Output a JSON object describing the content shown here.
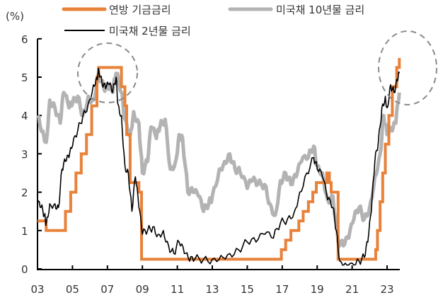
{
  "chart_data": {
    "type": "line",
    "title": "",
    "ylabel": "(%)",
    "xlabel": "",
    "ylim": [
      0,
      6
    ],
    "xlim": [
      2003,
      2023.7
    ],
    "y_ticks": [
      "0",
      "1",
      "2",
      "3",
      "4",
      "5",
      "6"
    ],
    "x_ticks": [
      "03",
      "05",
      "07",
      "09",
      "11",
      "13",
      "15",
      "17",
      "19",
      "21",
      "23"
    ],
    "grid": false,
    "legend_position": "top",
    "legend": [
      "연방 기금금리",
      "미국채 10년물 금리",
      "미국채 2년물 금리"
    ],
    "annotations": [
      {
        "type": "dashed-circle",
        "around": "2006-2007 peak"
      },
      {
        "type": "dashed-circle",
        "around": "2023 peak"
      }
    ],
    "series": [
      {
        "name": "연방 기금금리",
        "color": "#e8823a",
        "x": [
          2003.0,
          2003.5,
          2004.5,
          2004.6,
          2004.9,
          2005.2,
          2005.5,
          2005.8,
          2006.1,
          2006.4,
          2006.5,
          2007.7,
          2007.8,
          2008.0,
          2008.1,
          2008.3,
          2008.8,
          2008.95,
          2015.95,
          2016.95,
          2017.2,
          2017.5,
          2017.95,
          2018.2,
          2018.5,
          2018.75,
          2018.95,
          2019.55,
          2019.7,
          2019.8,
          2020.2,
          2022.2,
          2022.35,
          2022.45,
          2022.6,
          2022.75,
          2022.9,
          2023.1,
          2023.3,
          2023.55,
          2023.7
        ],
        "values": [
          1.25,
          1.0,
          1.0,
          1.5,
          2.0,
          2.5,
          3.0,
          3.5,
          4.25,
          5.0,
          5.25,
          5.25,
          4.75,
          4.25,
          3.5,
          2.25,
          2.0,
          0.25,
          0.25,
          0.5,
          0.75,
          1.0,
          1.25,
          1.5,
          1.75,
          2.0,
          2.25,
          2.5,
          2.25,
          2.0,
          0.25,
          0.25,
          0.5,
          1.0,
          1.75,
          2.5,
          3.25,
          4.0,
          4.75,
          5.25,
          5.5
        ]
      },
      {
        "name": "미국채 10년물 금리",
        "color": "#b3b3b3",
        "x": [
          2003.0,
          2003.3,
          2003.5,
          2003.7,
          2004.0,
          2004.3,
          2004.5,
          2004.8,
          2005.0,
          2005.3,
          2005.6,
          2005.9,
          2006.2,
          2006.5,
          2006.8,
          2007.0,
          2007.3,
          2007.5,
          2007.8,
          2008.0,
          2008.3,
          2008.5,
          2008.8,
          2009.0,
          2009.3,
          2009.5,
          2009.8,
          2010.0,
          2010.3,
          2010.6,
          2010.9,
          2011.1,
          2011.3,
          2011.6,
          2011.9,
          2012.2,
          2012.5,
          2012.8,
          2013.0,
          2013.4,
          2013.7,
          2014.0,
          2014.3,
          2014.6,
          2015.0,
          2015.3,
          2015.6,
          2016.0,
          2016.3,
          2016.6,
          2016.9,
          2017.2,
          2017.5,
          2017.8,
          2018.1,
          2018.5,
          2018.8,
          2019.0,
          2019.3,
          2019.6,
          2019.9,
          2020.2,
          2020.5,
          2020.8,
          2021.1,
          2021.4,
          2021.7,
          2022.0,
          2022.3,
          2022.6,
          2022.8,
          2023.0,
          2023.3,
          2023.5,
          2023.7
        ],
        "values": [
          4.0,
          3.6,
          3.3,
          4.4,
          4.2,
          3.8,
          4.6,
          4.2,
          4.3,
          4.5,
          4.0,
          4.5,
          4.4,
          5.1,
          4.7,
          4.7,
          4.6,
          5.1,
          4.6,
          3.9,
          3.5,
          4.1,
          3.8,
          2.5,
          2.8,
          3.7,
          3.4,
          3.7,
          3.9,
          2.6,
          2.8,
          3.5,
          3.4,
          2.0,
          2.0,
          1.9,
          1.5,
          1.7,
          1.9,
          2.6,
          2.8,
          3.0,
          2.6,
          2.5,
          2.1,
          2.3,
          2.2,
          2.2,
          1.7,
          1.4,
          2.3,
          2.5,
          2.2,
          2.4,
          2.8,
          2.9,
          3.2,
          2.7,
          2.5,
          1.8,
          1.9,
          0.7,
          0.6,
          0.8,
          1.3,
          1.6,
          1.3,
          1.6,
          2.4,
          3.0,
          4.0,
          3.5,
          3.6,
          3.8,
          4.6
        ]
      },
      {
        "name": "미국채 2년물 금리",
        "color": "#000000",
        "x": [
          2003.0,
          2003.2,
          2003.4,
          2003.5,
          2003.7,
          2004.0,
          2004.2,
          2004.4,
          2004.6,
          2004.8,
          2005.0,
          2005.3,
          2005.6,
          2005.9,
          2006.2,
          2006.4,
          2006.5,
          2006.7,
          2006.9,
          2007.1,
          2007.3,
          2007.5,
          2007.6,
          2007.8,
          2008.0,
          2008.2,
          2008.4,
          2008.6,
          2008.8,
          2009.0,
          2009.3,
          2009.6,
          2009.9,
          2010.2,
          2010.5,
          2010.8,
          2011.1,
          2011.4,
          2011.7,
          2012.0,
          2012.5,
          2013.0,
          2013.5,
          2014.0,
          2014.5,
          2015.0,
          2015.5,
          2016.0,
          2016.5,
          2016.9,
          2017.3,
          2017.7,
          2018.0,
          2018.4,
          2018.8,
          2019.0,
          2019.3,
          2019.6,
          2019.9,
          2020.1,
          2020.3,
          2020.6,
          2021.0,
          2021.4,
          2021.7,
          2021.9,
          2022.1,
          2022.3,
          2022.5,
          2022.7,
          2022.9,
          2023.0,
          2023.2,
          2023.4,
          2023.6,
          2023.7
        ],
        "values": [
          1.7,
          1.6,
          1.4,
          1.2,
          1.7,
          1.7,
          1.6,
          2.6,
          2.8,
          2.9,
          3.2,
          3.6,
          4.0,
          4.3,
          4.8,
          5.0,
          5.2,
          4.8,
          4.7,
          4.8,
          4.6,
          5.0,
          4.3,
          4.0,
          2.7,
          2.5,
          1.5,
          2.4,
          1.6,
          0.9,
          1.0,
          1.1,
          0.9,
          1.0,
          0.6,
          0.4,
          0.7,
          0.4,
          0.2,
          0.25,
          0.25,
          0.25,
          0.35,
          0.4,
          0.5,
          0.7,
          0.7,
          0.9,
          0.8,
          1.2,
          1.3,
          1.5,
          2.0,
          2.5,
          2.9,
          2.6,
          2.4,
          1.8,
          1.6,
          1.0,
          0.2,
          0.15,
          0.15,
          0.2,
          0.3,
          0.7,
          1.5,
          2.8,
          3.3,
          4.2,
          4.5,
          4.2,
          4.8,
          4.6,
          4.9,
          5.1
        ]
      }
    ]
  },
  "legend": {
    "items": [
      {
        "label": "연방 기금금리",
        "color": "#e8823a"
      },
      {
        "label": "미국채 10년물 금리",
        "color": "#b3b3b3"
      },
      {
        "label": "미국채 2년물 금리",
        "color": "#000000"
      }
    ]
  },
  "axes": {
    "y_unit": "(%)",
    "y_ticks": [
      "0",
      "1",
      "2",
      "3",
      "4",
      "5",
      "6"
    ],
    "x_ticks": [
      "03",
      "05",
      "07",
      "09",
      "11",
      "13",
      "15",
      "17",
      "19",
      "21",
      "23"
    ]
  }
}
